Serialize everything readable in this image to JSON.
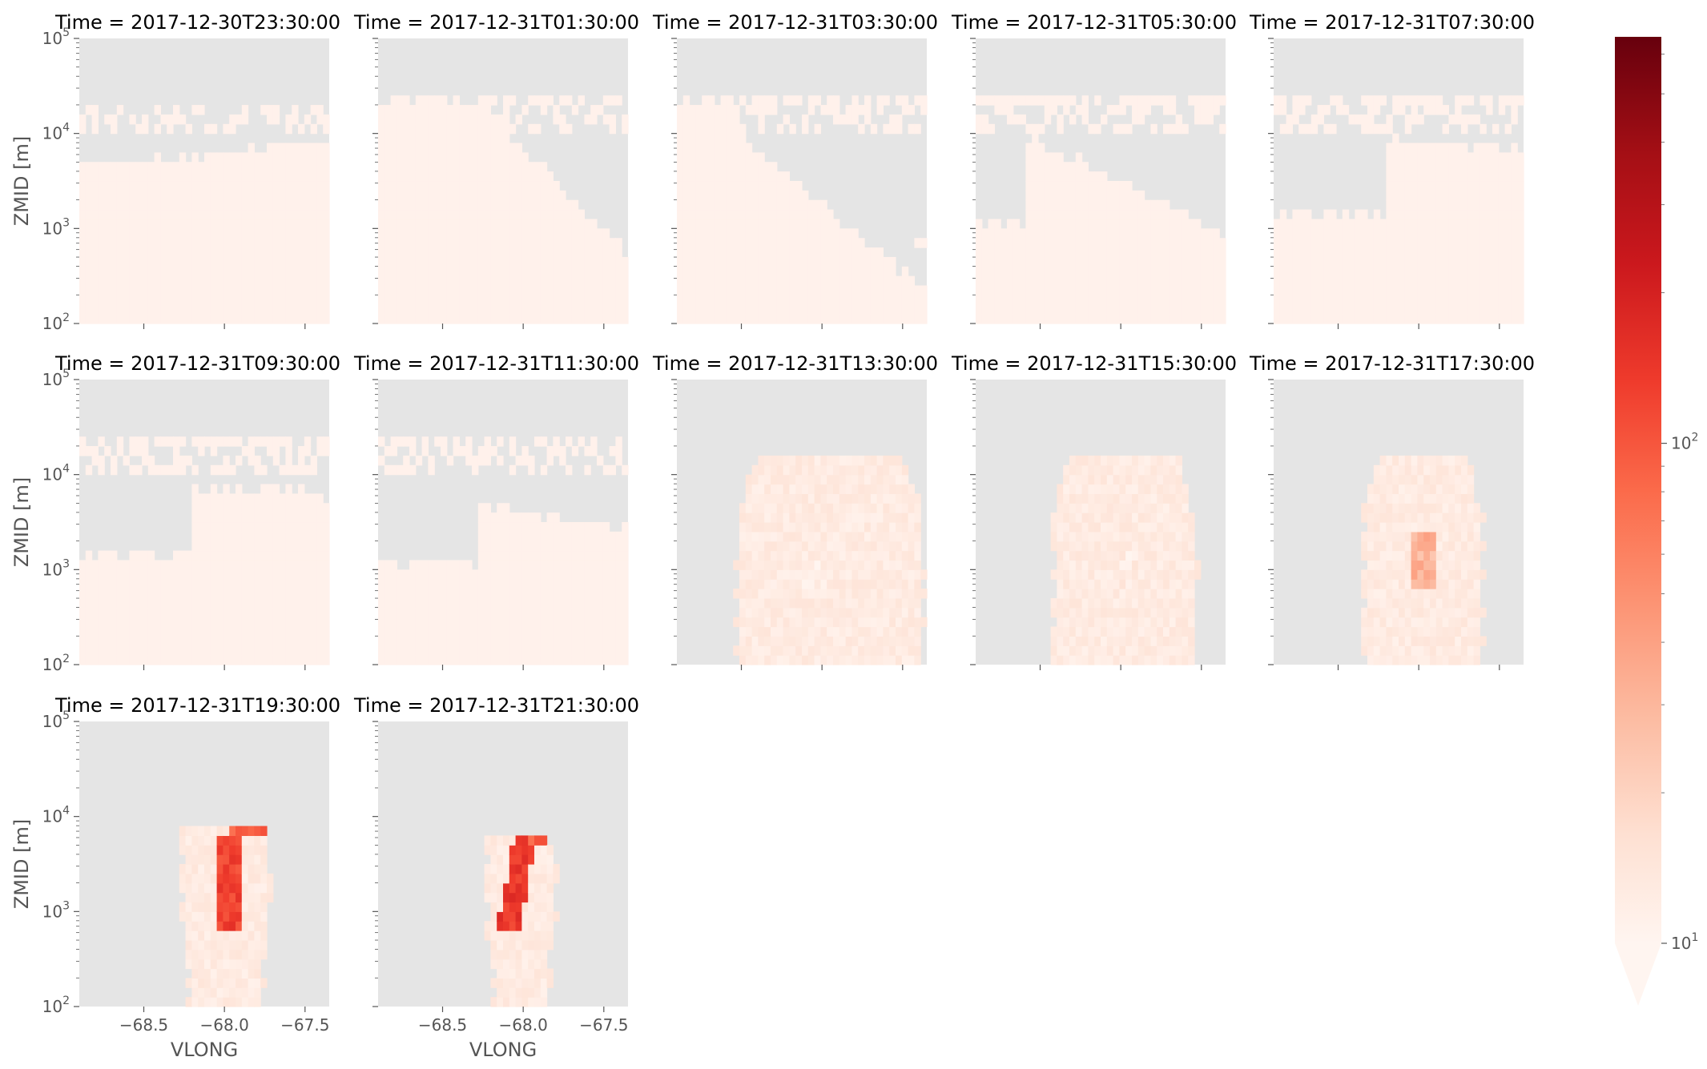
{
  "figure": {
    "colors": {
      "background_missing": "#e5e5e5",
      "colormap": "Reds",
      "colormap_low": "#fff5f0",
      "colormap_high": "#67000d",
      "tick_color": "#555555",
      "title_color": "#000000"
    }
  },
  "chart_data": {
    "type": "heatmap",
    "layout": "facet grid, 3 rows x 5 columns (12 panels)",
    "x_axis": {
      "label": "VLONG",
      "lim": [
        -68.9,
        -67.35
      ],
      "ticks": [
        -68.5,
        -68.0,
        -67.5
      ],
      "tick_labels": [
        "−68.5",
        "−68.0",
        "−67.5"
      ]
    },
    "y_axis": {
      "label": "ZMID [m]",
      "scale": "log",
      "lim": [
        100,
        100000
      ],
      "ticks": [
        100,
        1000,
        10000,
        100000
      ],
      "tick_labels": [
        {
          "base": "10",
          "exp": "2"
        },
        {
          "base": "10",
          "exp": "3"
        },
        {
          "base": "10",
          "exp": "4"
        },
        {
          "base": "10",
          "exp": "5"
        }
      ]
    },
    "colorbar": {
      "scale": "log",
      "extend": "min",
      "range": [
        10,
        650
      ],
      "tick_labels": [
        {
          "base": "10",
          "exp": "1",
          "value": 10
        },
        {
          "base": "10",
          "exp": "2",
          "value": 100
        }
      ]
    },
    "panels": [
      {
        "title": "Time = 2017-12-30T23:30:00",
        "time": "2017-12-30T23:30:00"
      },
      {
        "title": "Time = 2017-12-31T01:30:00",
        "time": "2017-12-31T01:30:00"
      },
      {
        "title": "Time = 2017-12-31T03:30:00",
        "time": "2017-12-31T03:30:00"
      },
      {
        "title": "Time = 2017-12-31T05:30:00",
        "time": "2017-12-31T05:30:00"
      },
      {
        "title": "Time = 2017-12-31T07:30:00",
        "time": "2017-12-31T07:30:00"
      },
      {
        "title": "Time = 2017-12-31T09:30:00",
        "time": "2017-12-31T09:30:00"
      },
      {
        "title": "Time = 2017-12-31T11:30:00",
        "time": "2017-12-31T11:30:00"
      },
      {
        "title": "Time = 2017-12-31T13:30:00",
        "time": "2017-12-31T13:30:00"
      },
      {
        "title": "Time = 2017-12-31T15:30:00",
        "time": "2017-12-31T15:30:00"
      },
      {
        "title": "Time = 2017-12-31T17:30:00",
        "time": "2017-12-31T17:30:00"
      },
      {
        "title": "Time = 2017-12-31T19:30:00",
        "time": "2017-12-31T19:30:00"
      },
      {
        "title": "Time = 2017-12-31T21:30:00",
        "time": "2017-12-31T21:30:00"
      }
    ]
  }
}
